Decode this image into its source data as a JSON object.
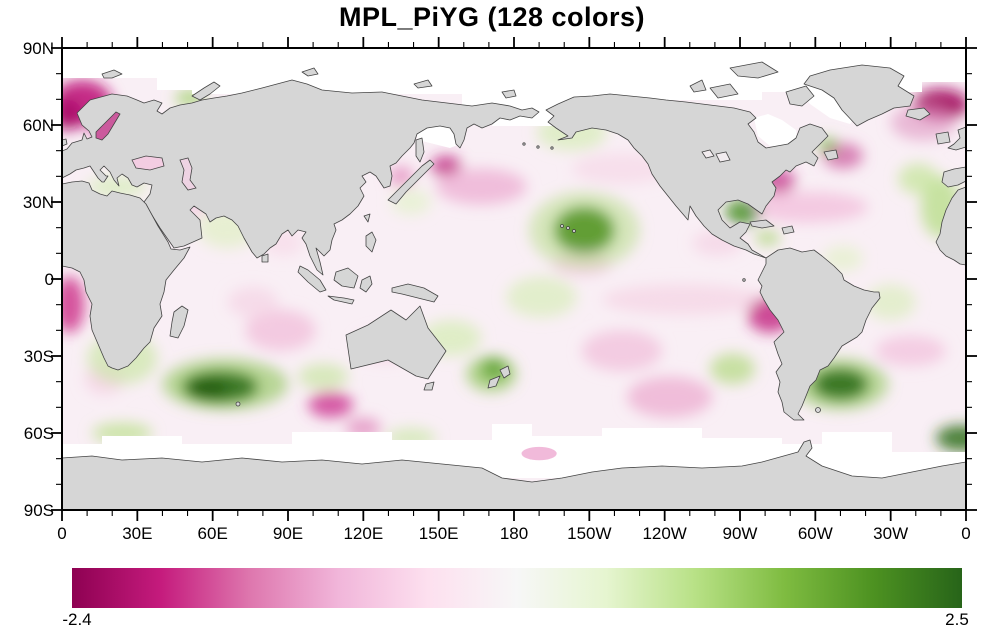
{
  "title": "MPL_PiYG (128 colors)",
  "chart_data": {
    "type": "heatmap",
    "subtype": "global-anomaly-map",
    "title": "MPL_PiYG (128 colors)",
    "projection": "cylindrical equidistant, longitudes 0E eastward to 360",
    "x_range_deg": [
      0,
      360
    ],
    "y_range_deg": [
      90,
      -90
    ],
    "major_tick_interval_deg": 30,
    "minor_tick_interval_deg": 10,
    "x_tick_labels": [
      "0",
      "30E",
      "60E",
      "90E",
      "120E",
      "150E",
      "180",
      "150W",
      "120W",
      "90W",
      "60W",
      "30W",
      "0"
    ],
    "y_tick_labels": [
      "90N",
      "60N",
      "30N",
      "0",
      "30S",
      "60S",
      "90S"
    ],
    "grid": false,
    "colorbar": {
      "min_label": "-2.4",
      "max_label": "2.5",
      "colormap": "MPL_PiYG",
      "n_colors": 128,
      "orientation": "horizontal",
      "stops": [
        "#8e0152",
        "#c51b7d",
        "#de77ae",
        "#f1b6da",
        "#fde0ef",
        "#f7f7f7",
        "#e6f5d0",
        "#b8e186",
        "#7fbc41",
        "#4d9221",
        "#276419"
      ]
    },
    "land_color": "#d6d6d6",
    "coast_color": "#444444",
    "missing_data_color": "#ffffff",
    "ocean_base_color": "#f9eff5",
    "anomalies": [
      {
        "name": "norwegian-sea",
        "lon": 8,
        "lat": 68.5,
        "rlon": 12,
        "rlat": 9,
        "color": "#c01a7c",
        "opacity": 0.9
      },
      {
        "name": "norwegian-sea-core",
        "lon": 2,
        "lat": 64,
        "rlon": 6,
        "rlat": 6,
        "color": "#a80a68",
        "opacity": 0.9
      },
      {
        "name": "baltic-sea",
        "lon": 19,
        "lat": 56,
        "rlon": 6,
        "rlat": 4,
        "color": "#c51b7d",
        "opacity": 0.8
      },
      {
        "name": "greenland-iceland-sea",
        "lon": 350,
        "lat": 68,
        "rlon": 11,
        "rlat": 6,
        "color": "#a50f63",
        "opacity": 0.95
      },
      {
        "name": "iceland-halo",
        "lon": 343,
        "lat": 61,
        "rlon": 13,
        "rlat": 7,
        "color": "#e094c2",
        "opacity": 0.6
      },
      {
        "name": "labrador-sea-pink",
        "lon": 311,
        "lat": 48,
        "rlon": 8,
        "rlat": 5,
        "color": "#d066a5",
        "opacity": 0.8
      },
      {
        "name": "us-east-coast",
        "lon": 285,
        "lat": 38,
        "rlon": 7,
        "rlat": 5,
        "color": "#c73b90",
        "opacity": 0.8
      },
      {
        "name": "n-atlantic-band",
        "lon": 297,
        "lat": 28,
        "rlon": 24,
        "rlat": 6,
        "color": "#f3c3de",
        "opacity": 0.85
      },
      {
        "name": "kuril-spot",
        "lon": 153,
        "lat": 44,
        "rlon": 6,
        "rlat": 4,
        "color": "#c12a84",
        "opacity": 0.85
      },
      {
        "name": "sea-of-japan",
        "lon": 135,
        "lat": 40,
        "rlon": 5,
        "rlat": 4,
        "color": "#e58fc0",
        "opacity": 0.8
      },
      {
        "name": "nw-pacific",
        "lon": 167,
        "lat": 36,
        "rlon": 18,
        "rlat": 7,
        "color": "#eeb2d4",
        "opacity": 0.8
      },
      {
        "name": "n-pacific-40n",
        "lon": 223,
        "lat": 43,
        "rlon": 20,
        "rlat": 6,
        "color": "#f7dcea",
        "opacity": 0.85
      },
      {
        "name": "eq-e-pacific-band",
        "lon": 247,
        "lat": -8,
        "rlon": 32,
        "rlat": 6,
        "color": "#f6d9e8",
        "opacity": 0.9
      },
      {
        "name": "peru-coast",
        "lon": 282,
        "lat": -14,
        "rlon": 9,
        "rlat": 7,
        "color": "#c52d86",
        "opacity": 0.85
      },
      {
        "name": "s-pacific",
        "lon": 223,
        "lat": -28,
        "rlon": 16,
        "rlat": 8,
        "color": "#f2c6de",
        "opacity": 0.85
      },
      {
        "name": "s-pacific-45s",
        "lon": 242,
        "lat": -46,
        "rlon": 17,
        "rlat": 8,
        "color": "#eeb5d5",
        "opacity": 0.85
      },
      {
        "name": "south-of-australia",
        "lon": 107,
        "lat": -49,
        "rlon": 9,
        "rlat": 5,
        "color": "#cf3f96",
        "opacity": 0.85
      },
      {
        "name": "south-of-australia-tail",
        "lon": 120,
        "lat": -58,
        "rlon": 7,
        "rlat": 4,
        "color": "#e290c1",
        "opacity": 0.8
      },
      {
        "name": "c-indian",
        "lon": 87,
        "lat": -20,
        "rlon": 14,
        "rlat": 8,
        "color": "#f2c3dd",
        "opacity": 0.85
      },
      {
        "name": "c-indian-2",
        "lon": 76,
        "lat": -9,
        "rlon": 10,
        "rlat": 6,
        "color": "#f6d8e8",
        "opacity": 0.85
      },
      {
        "name": "e-indian",
        "lon": 129,
        "lat": -26,
        "rlon": 12,
        "rlat": 6,
        "color": "#f5cfe3",
        "opacity": 0.85
      },
      {
        "name": "gulf-of-guinea",
        "lon": 3,
        "lat": -10,
        "rlon": 6,
        "rlat": 11,
        "color": "#cc2a87",
        "opacity": 0.8
      },
      {
        "name": "s-atlantic",
        "lon": 338,
        "lat": -28,
        "rlon": 14,
        "rlat": 6,
        "color": "#f3c8e0",
        "opacity": 0.85
      },
      {
        "name": "mexico-west",
        "lon": 261,
        "lat": 14,
        "rlon": 10,
        "rlat": 5,
        "color": "#f6d7e7",
        "opacity": 0.85
      },
      {
        "name": "sw-of-hawaii",
        "lon": 207,
        "lat": 6,
        "rlon": 12,
        "rlat": 5,
        "color": "#f3cce1",
        "opacity": 0.8
      },
      {
        "name": "sw-africa",
        "lon": 17,
        "lat": -39,
        "rlon": 8,
        "rlat": 6,
        "color": "#f6d4e5",
        "opacity": 0.85
      },
      {
        "name": "bengal",
        "lon": 88,
        "lat": 14,
        "rlon": 8,
        "rlat": 5,
        "color": "#f7dcea",
        "opacity": 0.8
      },
      {
        "name": "persian-gulf",
        "lon": 53,
        "lat": 28,
        "rlon": 5,
        "rlat": 3,
        "color": "#f0c0db",
        "opacity": 0.8
      },
      {
        "name": "black-sea-pink",
        "lon": 34,
        "lat": 44,
        "rlon": 6,
        "rlat": 3,
        "color": "#eec2dc",
        "opacity": 0.9
      },
      {
        "name": "north-of-hawaii-halo",
        "lon": 208,
        "lat": 19,
        "rlon": 22,
        "rlat": 15,
        "color": "#b8de8a",
        "opacity": 0.55
      },
      {
        "name": "north-of-hawaii-core",
        "lon": 208,
        "lat": 19,
        "rlon": 12,
        "rlat": 9,
        "color": "#4d9221",
        "opacity": 0.85
      },
      {
        "name": "gulf-of-mexico",
        "lon": 271,
        "lat": 26,
        "rlon": 7,
        "rlat": 5,
        "color": "#3f8c1d",
        "opacity": 0.8
      },
      {
        "name": "s-indian-halo",
        "lon": 65,
        "lat": -41,
        "rlon": 25,
        "rlat": 10,
        "color": "#8cc455",
        "opacity": 0.6
      },
      {
        "name": "s-indian-core",
        "lon": 63,
        "lat": -42,
        "rlon": 15,
        "rlat": 6,
        "color": "#2d6e16",
        "opacity": 0.9
      },
      {
        "name": "s-indian-dark",
        "lon": 58,
        "lat": -43,
        "rlon": 8,
        "rlat": 3.5,
        "color": "#1e5a10",
        "opacity": 0.9
      },
      {
        "name": "argentine-basin-halo",
        "lon": 310,
        "lat": -41,
        "rlon": 19,
        "rlat": 10,
        "color": "#90c65c",
        "opacity": 0.6
      },
      {
        "name": "argentine-basin-core",
        "lon": 310,
        "lat": -41,
        "rlon": 11,
        "rlat": 6,
        "color": "#2d6e16",
        "opacity": 0.9
      },
      {
        "name": "se-atlantic-edge",
        "lon": 358,
        "lat": -62,
        "rlon": 10,
        "rlat": 5,
        "color": "#2d6e16",
        "opacity": 0.85
      },
      {
        "name": "morocco-coast",
        "lon": 350,
        "lat": 28,
        "rlon": 8,
        "rlat": 12,
        "color": "#b5dd85",
        "opacity": 0.75
      },
      {
        "name": "iberia-coast",
        "lon": 341,
        "lat": 39,
        "rlon": 8,
        "rlat": 6,
        "color": "#c7e59d",
        "opacity": 0.75
      },
      {
        "name": "new-zealand-green",
        "lon": 171,
        "lat": -37,
        "rlon": 10,
        "rlat": 7,
        "color": "#8cc455",
        "opacity": 0.65
      },
      {
        "name": "new-zealand-core",
        "lon": 172,
        "lat": -35,
        "rlon": 5,
        "rlat": 4,
        "color": "#559c2b",
        "opacity": 0.8
      },
      {
        "name": "se-atlantic",
        "lon": 24,
        "lat": -31,
        "rlon": 14,
        "rlat": 10,
        "color": "#cce7a8",
        "opacity": 0.7
      },
      {
        "name": "arabian-sea",
        "lon": 66,
        "lat": 20,
        "rlon": 12,
        "rlat": 8,
        "color": "#dff0c3",
        "opacity": 0.7
      },
      {
        "name": "gulf-of-alaska",
        "lon": 203,
        "lat": 57,
        "rlon": 14,
        "rlat": 7,
        "color": "#d6ecb6",
        "opacity": 0.7
      },
      {
        "name": "w-eq-pacific",
        "lon": 191,
        "lat": -7,
        "rlon": 14,
        "rlat": 8,
        "color": "#d9eebb",
        "opacity": 0.7
      },
      {
        "name": "coral-sea",
        "lon": 155,
        "lat": -23,
        "rlon": 12,
        "rlat": 7,
        "color": "#d4ecb4",
        "opacity": 0.7
      },
      {
        "name": "eq-atlantic",
        "lon": 330,
        "lat": -9,
        "rlon": 10,
        "rlat": 7,
        "color": "#dbeebd",
        "opacity": 0.7
      },
      {
        "name": "mediterranean-green",
        "lon": 22,
        "lat": 36,
        "rlon": 12,
        "rlat": 4,
        "color": "#d6ecb8",
        "opacity": 0.75
      },
      {
        "name": "se-pacific",
        "lon": 267,
        "lat": -35,
        "rlon": 9,
        "rlat": 6,
        "color": "#b2da7f",
        "opacity": 0.7
      },
      {
        "name": "sw-australia",
        "lon": 104,
        "lat": -38,
        "rlon": 10,
        "rlat": 5,
        "color": "#c9e6a2",
        "opacity": 0.7
      },
      {
        "name": "barents-green",
        "lon": 51,
        "lat": 70.5,
        "rlon": 6,
        "rlat": 3,
        "color": "#9ecf67",
        "opacity": 0.8
      },
      {
        "name": "newfoundland-green",
        "lon": 305,
        "lat": 52,
        "rlon": 4,
        "rlat": 3,
        "color": "#7ab84a",
        "opacity": 0.8
      },
      {
        "name": "s-ocean-1",
        "lon": 24,
        "lat": -60,
        "rlon": 12,
        "rlat": 4,
        "color": "#b9df88",
        "opacity": 0.7
      },
      {
        "name": "s-ocean-2",
        "lon": 139,
        "lat": -62,
        "rlon": 10,
        "rlat": 4,
        "color": "#cde8ab",
        "opacity": 0.7
      },
      {
        "name": "s-of-japan",
        "lon": 139,
        "lat": 30,
        "rlon": 8,
        "rlat": 5,
        "color": "#e3f2ca",
        "opacity": 0.7
      },
      {
        "name": "trop-atlantic",
        "lon": 311,
        "lat": 8,
        "rlon": 8,
        "rlat": 5,
        "color": "#e2f1c9",
        "opacity": 0.7
      },
      {
        "name": "caribbean-green",
        "lon": 281,
        "lat": 16,
        "rlon": 5,
        "rlat": 3,
        "color": "#a6d471",
        "opacity": 0.7
      }
    ],
    "overlay_spots": [
      {
        "name": "ross-sea-pink",
        "lon": 190,
        "lat": -68,
        "rlon": 7,
        "rlat": 2.6,
        "color": "#efb3d6",
        "opacity": 0.9
      },
      {
        "name": "caspian-south-green",
        "lon": 51.5,
        "lat": 35.5,
        "rlon": 2,
        "rlat": 1.6,
        "color": "#c9e59f",
        "opacity": 0.9
      }
    ]
  }
}
